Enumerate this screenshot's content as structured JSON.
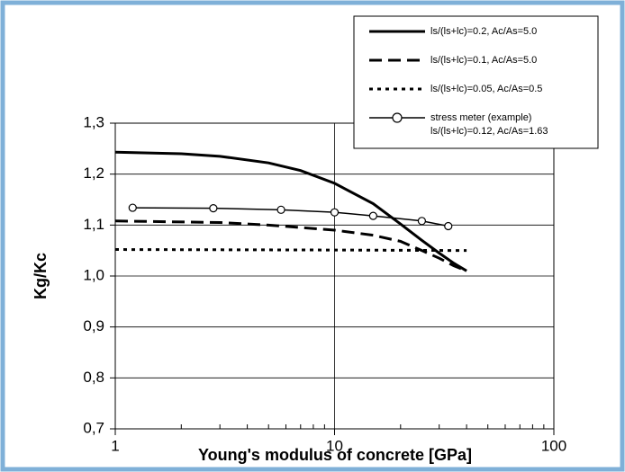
{
  "chart_data": {
    "type": "line",
    "xlabel": "Young's modulus of concrete [GPa]",
    "ylabel": "Kg/Kc",
    "xscale": "log",
    "xlim": [
      1,
      100
    ],
    "xticks": [
      1,
      10,
      100
    ],
    "xminorticks": [
      2,
      3,
      4,
      5,
      6,
      7,
      8,
      9,
      20,
      30,
      40,
      50,
      60,
      70,
      80,
      90
    ],
    "ylim": [
      0.7,
      1.3
    ],
    "yticks": [
      {
        "value": 0.7,
        "label": "0,7"
      },
      {
        "value": 0.8,
        "label": "0,8"
      },
      {
        "value": 0.9,
        "label": "0,9"
      },
      {
        "value": 1.0,
        "label": "1,0"
      },
      {
        "value": 1.1,
        "label": "1,1"
      },
      {
        "value": 1.2,
        "label": "1,2"
      },
      {
        "value": 1.3,
        "label": "1,3"
      }
    ],
    "grid": true,
    "legend": "upper right",
    "series": [
      {
        "name": "ls/(ls+lc)=0.2, Ac/As=5.0",
        "color": "#000000",
        "dash": "solid",
        "marker": "none",
        "x": [
          1,
          2,
          3,
          5,
          7,
          10,
          15,
          20,
          25,
          30,
          35,
          40
        ],
        "values": [
          1.243,
          1.24,
          1.235,
          1.222,
          1.207,
          1.182,
          1.142,
          1.102,
          1.07,
          1.045,
          1.025,
          1.01
        ]
      },
      {
        "name": "ls/(ls+lc)=0.1, Ac/As=5.0",
        "color": "#000000",
        "dash": "dash",
        "marker": "none",
        "x": [
          1,
          3,
          5,
          10,
          15,
          20,
          25,
          30,
          35,
          40
        ],
        "values": [
          1.108,
          1.105,
          1.1,
          1.09,
          1.08,
          1.068,
          1.05,
          1.035,
          1.02,
          1.01
        ]
      },
      {
        "name": "ls/(ls+lc)=0.05, Ac/As=0.5",
        "color": "#000000",
        "dash": "dot",
        "marker": "none",
        "x": [
          1,
          10,
          40
        ],
        "values": [
          1.052,
          1.051,
          1.05
        ]
      },
      {
        "name": "stress meter (example)\nls/(ls+lc)=0.12, Ac/As=1.63",
        "color": "#000000",
        "dash": "solid",
        "marker": "circle",
        "x": [
          1.2,
          2.8,
          5.7,
          10,
          15,
          25,
          33
        ],
        "values": [
          1.134,
          1.133,
          1.13,
          1.125,
          1.118,
          1.108,
          1.098
        ]
      }
    ]
  }
}
